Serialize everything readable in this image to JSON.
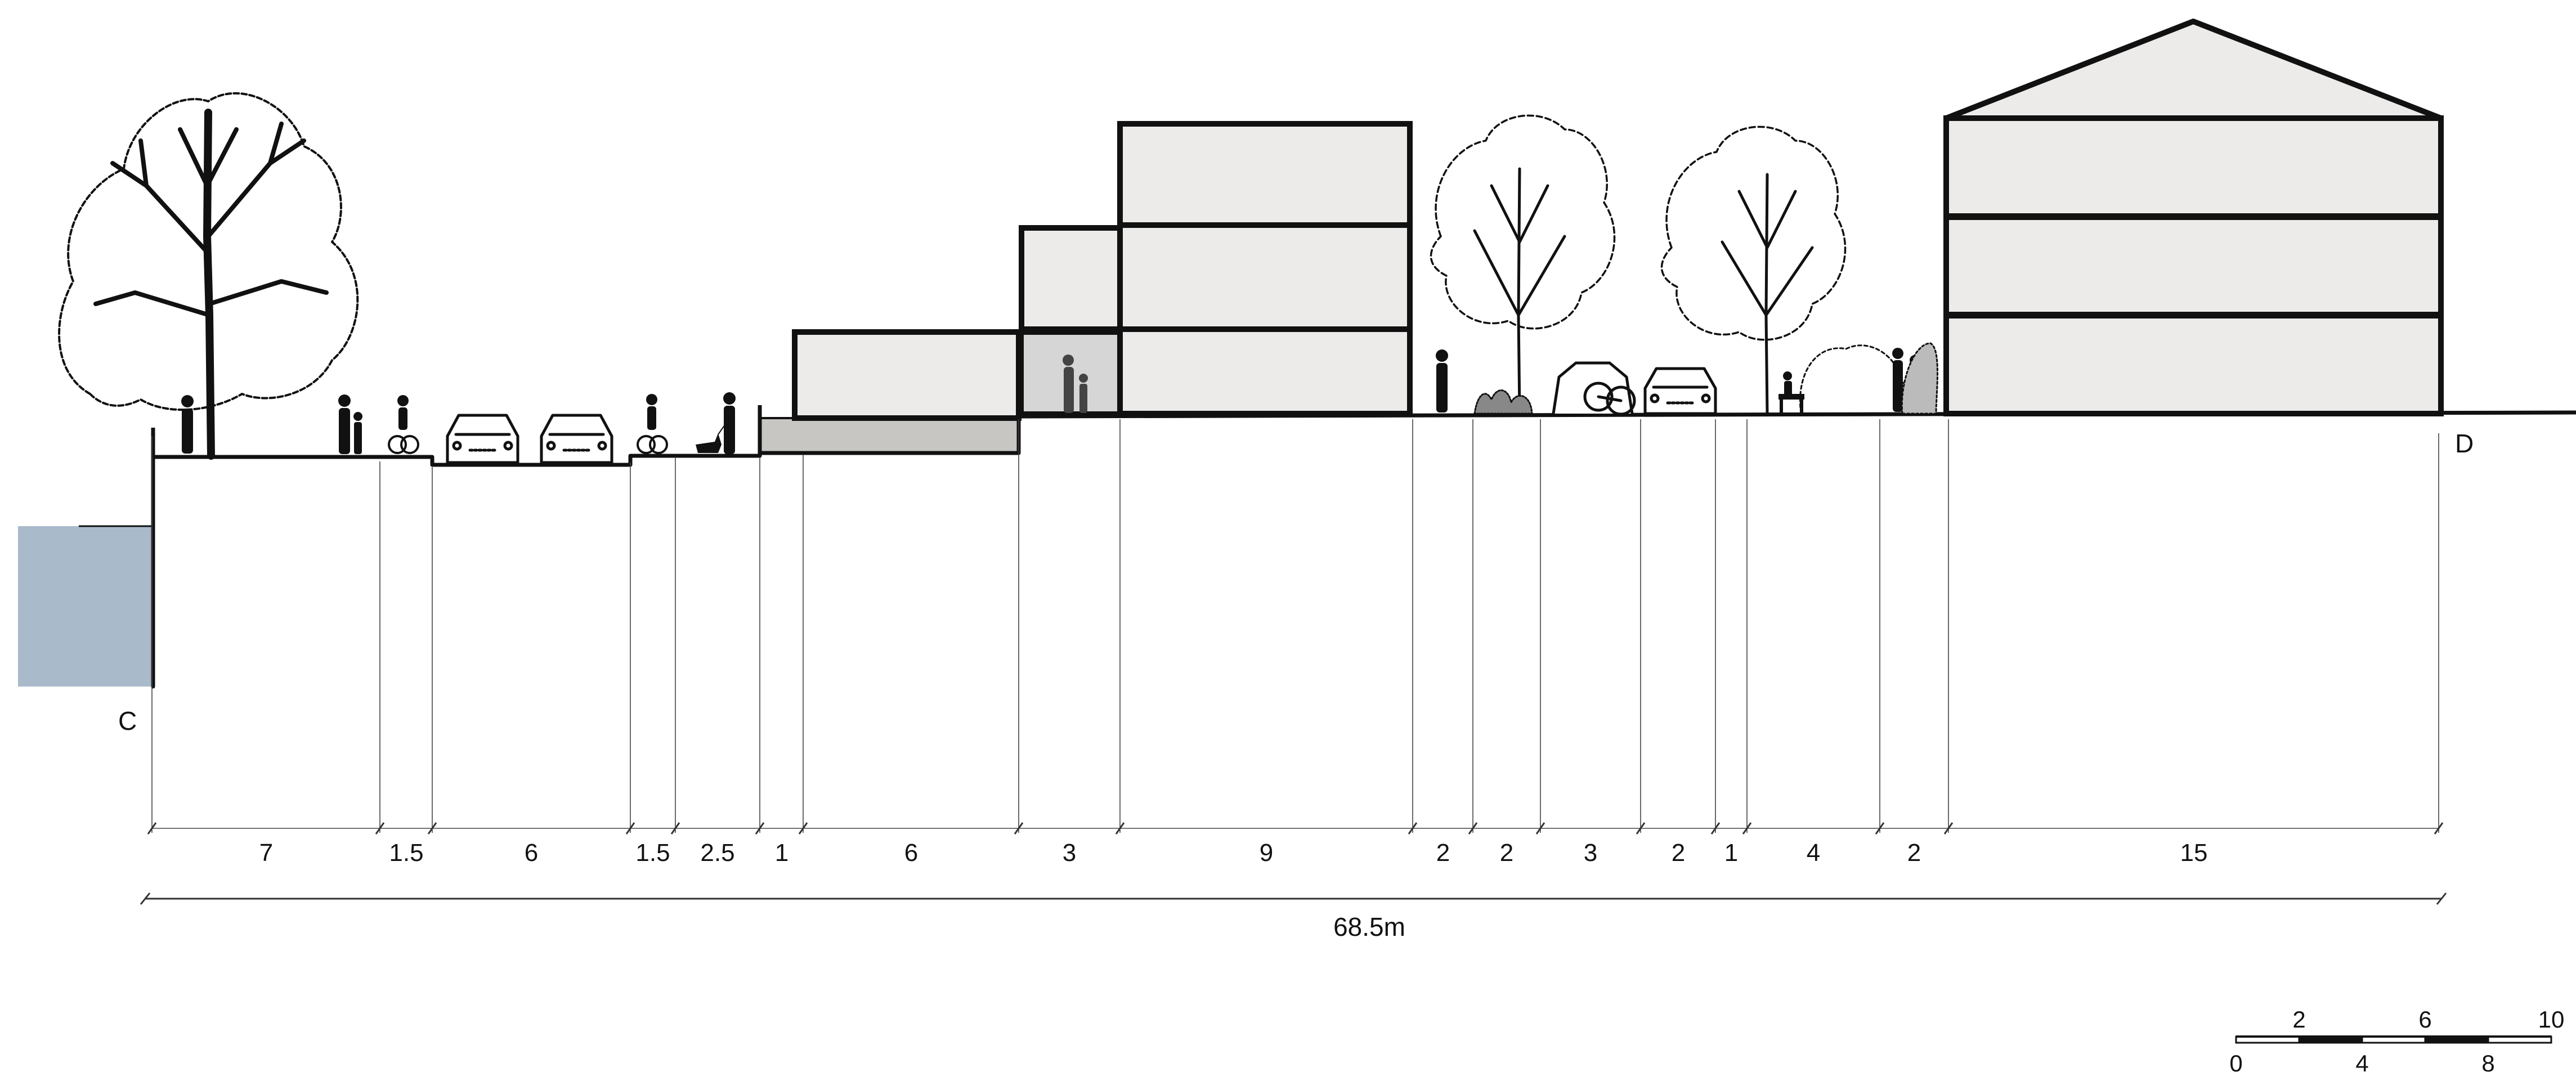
{
  "section_points": {
    "start": "C",
    "end": "D"
  },
  "segments": [
    "7",
    "1.5",
    "6",
    "1.5",
    "2.5",
    "1",
    "6",
    "3",
    "9",
    "2",
    "2",
    "3",
    "2",
    "1",
    "4",
    "2",
    "15"
  ],
  "total_length": "68.5m",
  "scale_bar": {
    "upper_labels": [
      "2",
      "6",
      "10"
    ],
    "lower_labels": [
      "0",
      "4",
      "8"
    ]
  },
  "colors": {
    "ink": "#111111",
    "building_fill": "#ecebea",
    "plinth_fill": "#c8c6c2",
    "water_fill": "#a9bacb",
    "courtyard_fill": "#d6d6d6"
  },
  "icons": [
    "tree-icon",
    "person-icon",
    "car-icon",
    "bicycle-icon",
    "dog-walker-icon",
    "shrub-icon",
    "bench-icon"
  ]
}
